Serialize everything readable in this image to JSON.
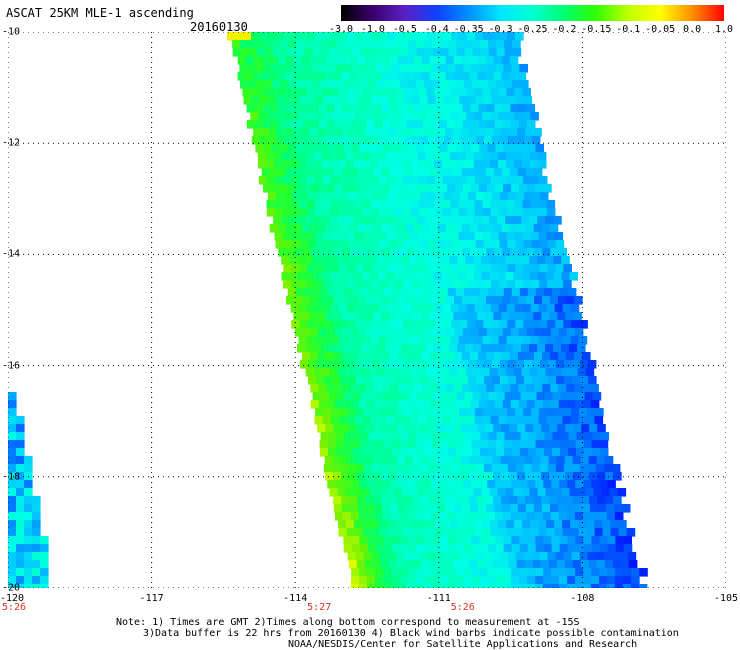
{
  "header": {
    "title": "ASCAT 25KM MLE-1 ascending",
    "date": "20160130"
  },
  "colorbar": {
    "labels": [
      "-3.0",
      "-1.0",
      "-0.5",
      "-0.4",
      "-0.35",
      "-0.3",
      "-0.25",
      "-0.2",
      "-0.15",
      "-0.1",
      "-0.05",
      "0.0",
      "1.0"
    ],
    "colors": [
      "#000000",
      "#3a006e",
      "#5a20c8",
      "#1040ff",
      "#0090ff",
      "#00e6ff",
      "#00ffd0",
      "#00ff70",
      "#30ff00",
      "#c0ff00",
      "#ffff00",
      "#ff9000",
      "#ff0000"
    ]
  },
  "chart_data": {
    "type": "heatmap",
    "title": "ASCAT 25KM MLE-1 ascending",
    "date": "20160130",
    "x_range": [
      -120,
      -105
    ],
    "y_range": [
      -20,
      -10
    ],
    "x_ticks": [
      "-120",
      "-117",
      "-114",
      "-111",
      "-108",
      "-105"
    ],
    "y_ticks": [
      "-10",
      "-12",
      "-14",
      "-16",
      "-18",
      "-20"
    ],
    "time_labels": [
      {
        "lon": -120,
        "text": "5:26"
      },
      {
        "lon": -114,
        "text": "5:27"
      },
      {
        "lon": -111,
        "text": "5:26"
      }
    ],
    "swaths": [
      {
        "desc": "main swath",
        "values_range": [
          -0.4,
          0.0
        ]
      },
      {
        "desc": "west edge fragment",
        "values_range": [
          -0.5,
          -0.3
        ]
      }
    ]
  },
  "notes": {
    "line1": "Note: 1) Times are GMT 2)Times along bottom correspond to measurement at -15S",
    "line2": "3)Data buffer is 22 hrs from 20160130 4) Black wind barbs indicate possible contamination",
    "line3": "NOAA/NESDIS/Center for Satellite Applications and Research"
  }
}
